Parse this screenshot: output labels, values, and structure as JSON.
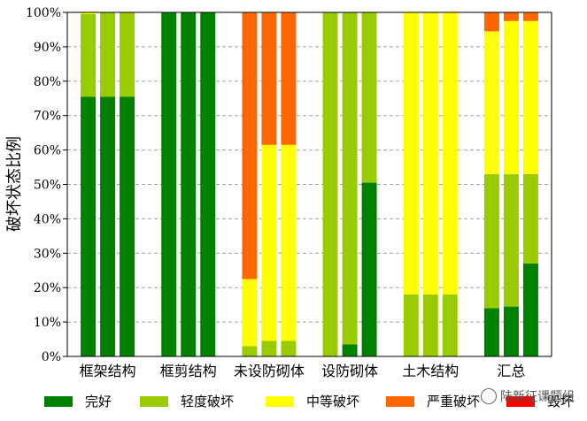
{
  "chart_data": {
    "type": "bar",
    "stacked": true,
    "title": "",
    "xlabel": "",
    "ylabel": "破坏状态比例",
    "ylim": [
      0,
      100
    ],
    "yticks": [
      "0%",
      "10%",
      "20%",
      "30%",
      "40%",
      "50%",
      "60%",
      "70%",
      "80%",
      "90%",
      "100%"
    ],
    "grid": "horizontal-dashed",
    "legend_position": "bottom",
    "categories": [
      "框架结构",
      "框剪结构",
      "未设防砌体",
      "设防砌体",
      "土木结构",
      "汇总"
    ],
    "bars_per_category": 3,
    "series": [
      {
        "name": "完好",
        "color": "#008000",
        "values": [
          [
            75.5,
            75.5,
            75.5
          ],
          [
            100,
            100,
            100
          ],
          [
            0,
            0,
            0
          ],
          [
            0,
            3.5,
            50.5
          ],
          [
            0,
            0,
            0
          ],
          [
            14,
            14.5,
            27
          ]
        ]
      },
      {
        "name": "轻度破坏",
        "color": "#99CC00",
        "values": [
          [
            24,
            24.5,
            24.5
          ],
          [
            0,
            0,
            0
          ],
          [
            3,
            4.5,
            4.5
          ],
          [
            100,
            96.5,
            49.5
          ],
          [
            18,
            18,
            18
          ],
          [
            39,
            38.5,
            26
          ]
        ]
      },
      {
        "name": "中等破坏",
        "color": "#FFFF00",
        "values": [
          [
            0.5,
            0,
            0
          ],
          [
            0,
            0,
            0
          ],
          [
            19.5,
            57,
            57
          ],
          [
            0,
            0,
            0
          ],
          [
            82,
            82,
            82
          ],
          [
            41.5,
            44.5,
            44.5
          ]
        ]
      },
      {
        "name": "严重破坏",
        "color": "#FF6600",
        "values": [
          [
            0,
            0,
            0
          ],
          [
            0,
            0,
            0
          ],
          [
            77.5,
            38.5,
            38.5
          ],
          [
            0,
            0,
            0
          ],
          [
            0,
            0,
            0
          ],
          [
            5.5,
            2.5,
            2.5
          ]
        ]
      },
      {
        "name": "毁坏",
        "color": "#FF0000",
        "values": [
          [
            0,
            0,
            0
          ],
          [
            0,
            0,
            0
          ],
          [
            0,
            0,
            0
          ],
          [
            0,
            0,
            0
          ],
          [
            0,
            0,
            0
          ],
          [
            0,
            0,
            0
          ]
        ]
      }
    ]
  },
  "watermark": {
    "text": "陆新征课题组",
    "icon": "wechat-icon"
  }
}
